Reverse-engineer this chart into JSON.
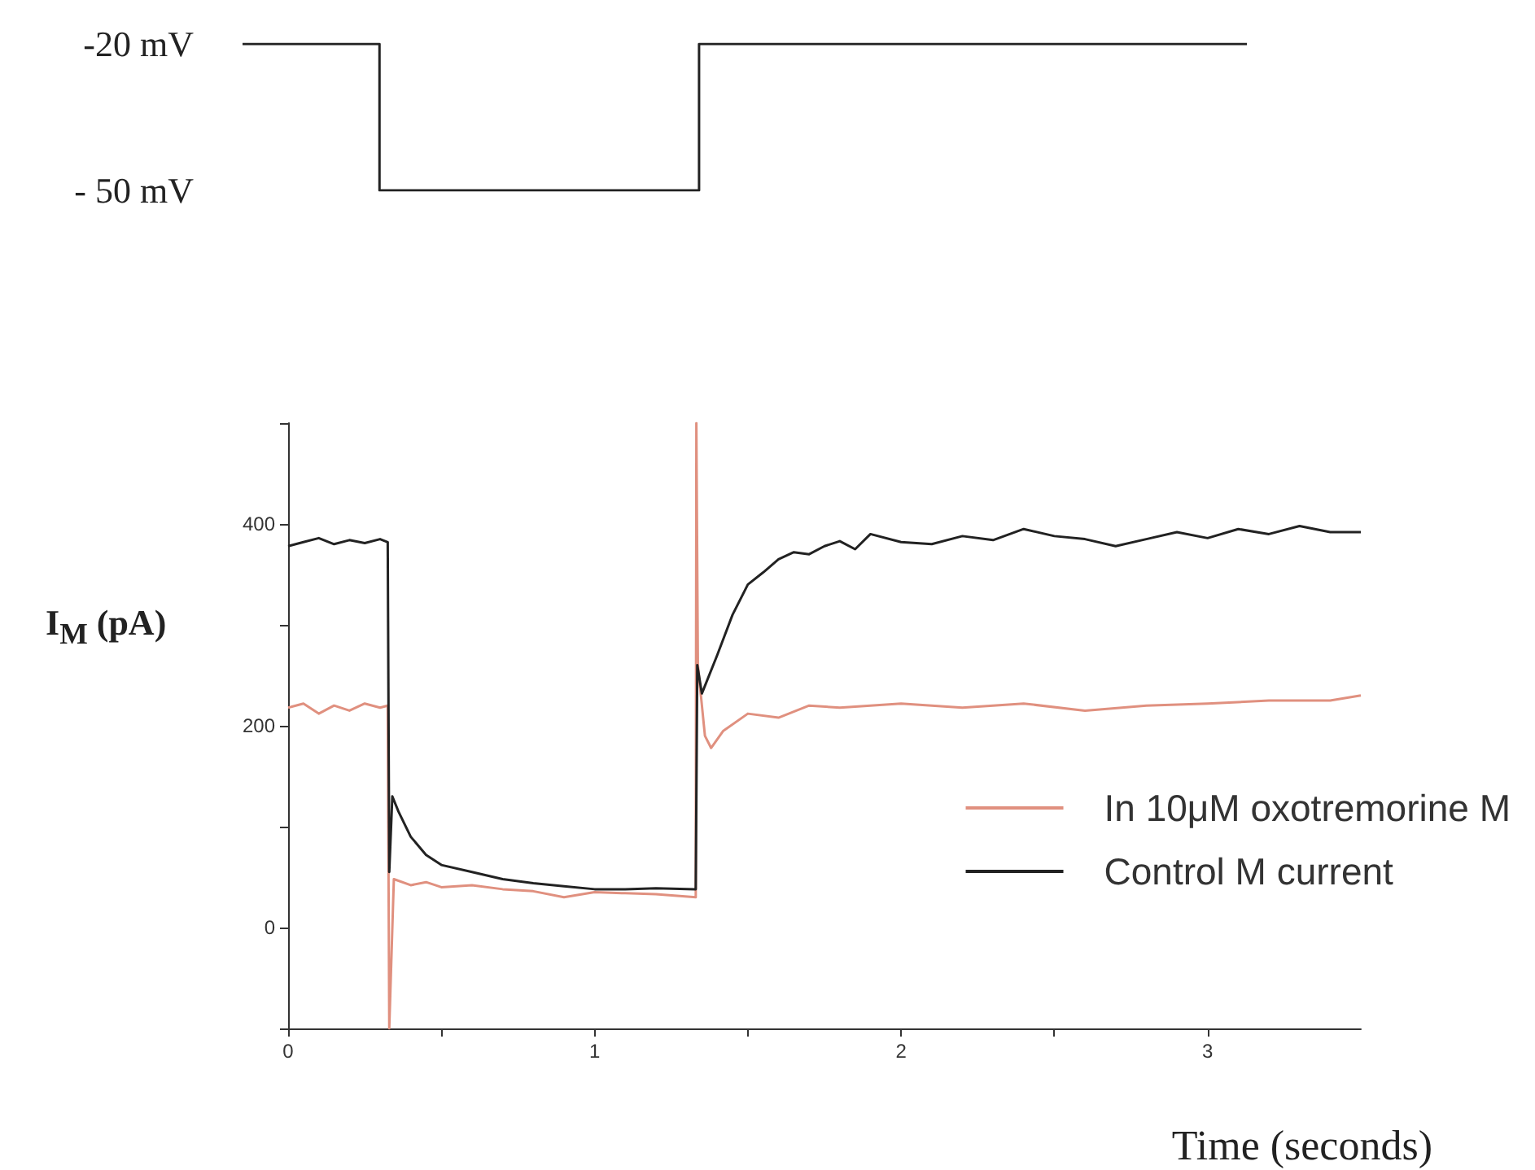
{
  "chart_data": [
    {
      "type": "step",
      "categories": [
        null,
        null,
        null,
        null,
        null,
        null,
        null,
        null,
        null,
        null,
        null,
        null,
        null,
        null,
        null,
        null,
        null,
        null,
        null,
        null,
        null,
        null,
        null
      ],
      "ylim": [
        -50,
        -20
      ],
      "yticks": [
        {
          "value": -20,
          "label": "-20 mV"
        },
        {
          "value": -50,
          "label": "- 50 mV"
        }
      ],
      "tick_labels": "y",
      "grid": false,
      "legend": false,
      "marker": "none",
      "series": [
        {
          "color": "#222222",
          "values": [
            -20,
            -20,
            -20,
            -50,
            -50,
            -50,
            -50,
            -50,
            -50,
            -50,
            -20,
            -20,
            -20,
            -20,
            -20,
            -20,
            -20,
            -20,
            -20,
            -20,
            -20,
            -20,
            -20
          ]
        }
      ]
    },
    {
      "type": "line",
      "xlabel": "Time (seconds)",
      "ylabel": "I$_{M}$ (pA)",
      "xlim": [
        0,
        3.5
      ],
      "ylim": [
        -100,
        500
      ],
      "xticks": [
        0,
        {
          "value": 0.5,
          "label": null
        },
        1,
        {
          "value": 1.5,
          "label": null
        },
        2,
        {
          "value": 2.5,
          "label": null
        },
        3
      ],
      "yticks": [
        {
          "value": -100,
          "label": null
        },
        0,
        {
          "value": 100,
          "label": null
        },
        200,
        {
          "value": 300,
          "label": null
        },
        400,
        {
          "value": 500,
          "label": null
        }
      ],
      "grid": false,
      "legend": "right",
      "marker": "none",
      "series": [
        {
          "name": "In 10μM oxotremorine M",
          "color": "#e0907f",
          "x": [
            0,
            0.05,
            0.1,
            0.15,
            0.2,
            0.25,
            0.3,
            0.325,
            0.33,
            0.345,
            0.4,
            0.45,
            0.5,
            0.6,
            0.7,
            0.8,
            0.9,
            1.0,
            1.1,
            1.2,
            1.33,
            1.332,
            1.337,
            1.36,
            1.38,
            1.42,
            1.5,
            1.6,
            1.7,
            1.8,
            2.0,
            2.2,
            2.4,
            2.6,
            2.8,
            3.0,
            3.2,
            3.4,
            3.5
          ],
          "values": [
            218,
            222,
            212,
            220,
            215,
            222,
            218,
            220,
            -100,
            48,
            42,
            45,
            40,
            42,
            38,
            36,
            30,
            35,
            34,
            33,
            30,
            500,
            260,
            190,
            178,
            195,
            212,
            208,
            220,
            218,
            222,
            218,
            222,
            215,
            220,
            222,
            225,
            225,
            230
          ]
        },
        {
          "name": "Control M current",
          "color": "#222222",
          "x": [
            0,
            0.05,
            0.1,
            0.15,
            0.2,
            0.25,
            0.3,
            0.325,
            0.33,
            0.34,
            0.36,
            0.4,
            0.45,
            0.5,
            0.6,
            0.7,
            0.8,
            0.9,
            1.0,
            1.1,
            1.2,
            1.33,
            1.335,
            1.35,
            1.4,
            1.45,
            1.5,
            1.55,
            1.6,
            1.65,
            1.7,
            1.75,
            1.8,
            1.85,
            1.9,
            2.0,
            2.1,
            2.2,
            2.3,
            2.4,
            2.5,
            2.6,
            2.7,
            2.8,
            2.9,
            3.0,
            3.1,
            3.2,
            3.3,
            3.4,
            3.5
          ],
          "values": [
            378,
            382,
            386,
            380,
            384,
            381,
            385,
            382,
            55,
            130,
            115,
            90,
            72,
            62,
            55,
            48,
            44,
            41,
            38,
            38,
            39,
            38,
            260,
            232,
            270,
            310,
            340,
            352,
            365,
            372,
            370,
            378,
            383,
            375,
            390,
            382,
            380,
            388,
            384,
            395,
            388,
            385,
            378,
            385,
            392,
            386,
            395,
            390,
            398,
            392,
            392
          ]
        }
      ]
    }
  ]
}
